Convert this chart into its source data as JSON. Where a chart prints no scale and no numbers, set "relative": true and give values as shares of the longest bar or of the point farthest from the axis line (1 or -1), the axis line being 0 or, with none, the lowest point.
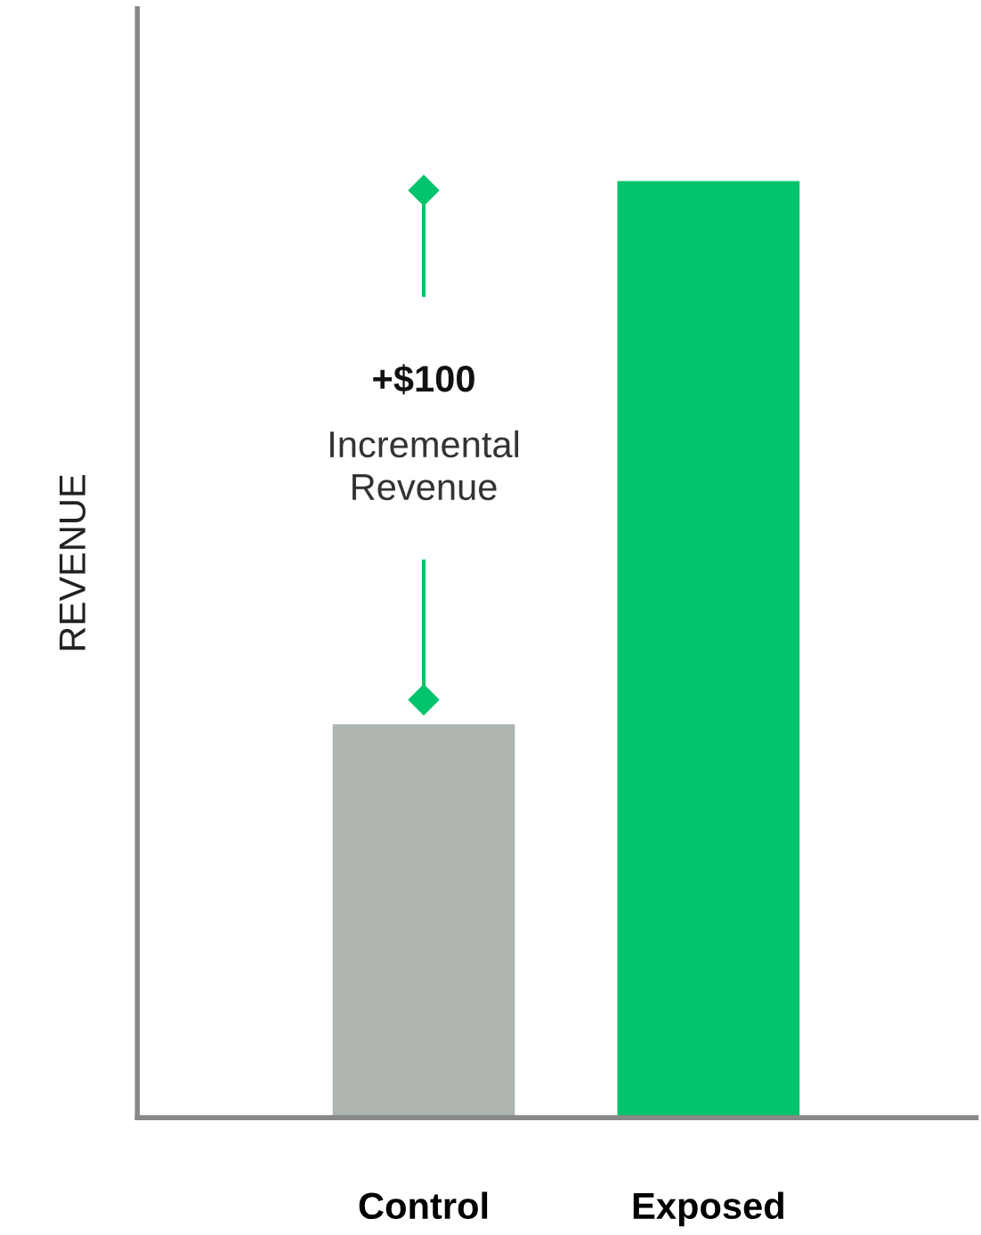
{
  "chart_data": {
    "type": "bar",
    "relative": true,
    "ylabel": "REVENUE",
    "categories": [
      "Control",
      "Exposed"
    ],
    "values": [
      0.42,
      1
    ],
    "colors": [
      "#adb5ae",
      "#00c36b"
    ],
    "annotations": [
      "+$100",
      "Incremental Revenue"
    ],
    "grid": false,
    "legend": false
  }
}
